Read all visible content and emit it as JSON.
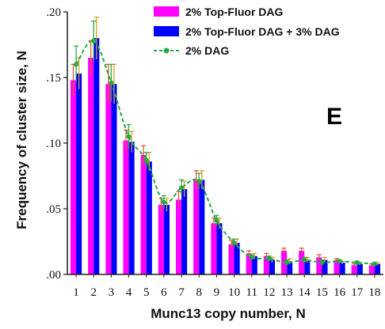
{
  "chart_data": {
    "type": "bar",
    "panel_label": "E",
    "xlabel": "Munc13 copy number, N",
    "ylabel": "Frequency of cluster size, N",
    "ylim": [
      0,
      0.2
    ],
    "y_ticks": [
      0,
      0.05,
      0.1,
      0.15,
      0.2
    ],
    "y_tick_labels": [
      ".00",
      ".05",
      ".10",
      ".15",
      ".20"
    ],
    "categories": [
      "1",
      "2",
      "3",
      "4",
      "5",
      "6",
      "7",
      "8",
      "9",
      "10",
      "11",
      "12",
      "13",
      "14",
      "15",
      "16",
      "17",
      "18"
    ],
    "legend_position": "top-right",
    "grid": false,
    "series": [
      {
        "name": "2% Top-Fluor DAG",
        "kind": "bar",
        "color": "#ff00ff",
        "values": [
          0.148,
          0.165,
          0.145,
          0.102,
          0.091,
          0.053,
          0.057,
          0.072,
          0.039,
          0.023,
          0.016,
          0.014,
          0.018,
          0.018,
          0.013,
          0.011,
          0.007,
          0.007
        ],
        "errors": [
          0.012,
          0.013,
          0.015,
          0.008,
          0.007,
          0.005,
          0.006,
          0.007,
          0.004,
          0.003,
          0.002,
          0.002,
          0.002,
          0.002,
          0.002,
          0.001,
          0.001,
          0.001
        ]
      },
      {
        "name": "2%  Top-Fluor DAG + 3%  DAG",
        "kind": "bar",
        "color": "#0000ff",
        "values": [
          0.153,
          0.18,
          0.145,
          0.101,
          0.086,
          0.053,
          0.065,
          0.072,
          0.039,
          0.024,
          0.014,
          0.011,
          0.01,
          0.011,
          0.011,
          0.009,
          0.008,
          0.008
        ],
        "errors": [
          0.012,
          0.016,
          0.015,
          0.008,
          0.007,
          0.005,
          0.006,
          0.007,
          0.004,
          0.003,
          0.002,
          0.002,
          0.002,
          0.002,
          0.002,
          0.001,
          0.001,
          0.001
        ]
      },
      {
        "name": "2%  DAG",
        "kind": "line",
        "color": "#22aa44",
        "values": [
          0.16,
          0.178,
          0.146,
          0.105,
          0.087,
          0.055,
          0.066,
          0.071,
          0.041,
          0.024,
          0.013,
          0.012,
          0.009,
          0.011,
          0.009,
          0.01,
          0.009,
          0.008
        ],
        "errors": [
          0.014,
          0.015,
          0.014,
          0.009,
          0.006,
          0.005,
          0.006,
          0.006,
          0.004,
          0.003,
          0.002,
          0.002,
          0.002,
          0.002,
          0.002,
          0.001,
          0.001,
          0.001
        ]
      }
    ]
  }
}
